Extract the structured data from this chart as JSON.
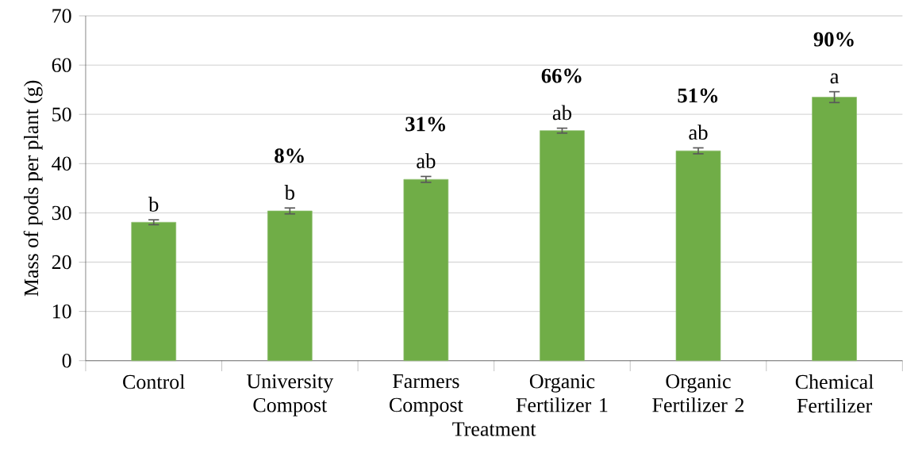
{
  "chart_data": {
    "type": "bar",
    "xlabel": "Treatment",
    "ylabel": "Mass of pods per plant (g)",
    "categories": [
      "Control",
      "University Compost",
      "Farmers Compost",
      "Organic Fertilizer 1",
      "Organic Fertilizer 2",
      "Chemical Fertilizer"
    ],
    "values": [
      28.1,
      30.4,
      36.8,
      46.7,
      42.6,
      53.5
    ],
    "errors": [
      0.5,
      0.6,
      0.6,
      0.5,
      0.6,
      1.1
    ],
    "color": "#70ad47",
    "ylim": [
      0,
      70
    ],
    "yticks": [
      0,
      10,
      20,
      30,
      40,
      50,
      60,
      70
    ],
    "grid": "y",
    "annotations": [
      {
        "text": "b",
        "x": "Control",
        "y": 28.1
      },
      {
        "text": "b",
        "x": "University Compost",
        "y": 30.4
      },
      {
        "text": "ab",
        "x": "Farmers Compost",
        "y": 36.8
      },
      {
        "text": "ab",
        "x": "Organic Fertilizer 1",
        "y": 46.7
      },
      {
        "text": "ab",
        "x": "Organic Fertilizer 2",
        "y": 42.6
      },
      {
        "text": "a",
        "x": "Chemical Fertilizer",
        "y": 53.5
      },
      {
        "text": "**8%**",
        "x": "University Compost",
        "y": 30.4
      },
      {
        "text": "**31%**",
        "x": "Farmers Compost",
        "y": 36.8
      },
      {
        "text": "**66%**",
        "x": "Organic Fertilizer 1",
        "y": 46.7
      },
      {
        "text": "**51%**",
        "x": "Organic Fertilizer 2",
        "y": 42.6
      },
      {
        "text": "**90%**",
        "x": "Chemical Fertilizer",
        "y": 53.5
      }
    ]
  }
}
